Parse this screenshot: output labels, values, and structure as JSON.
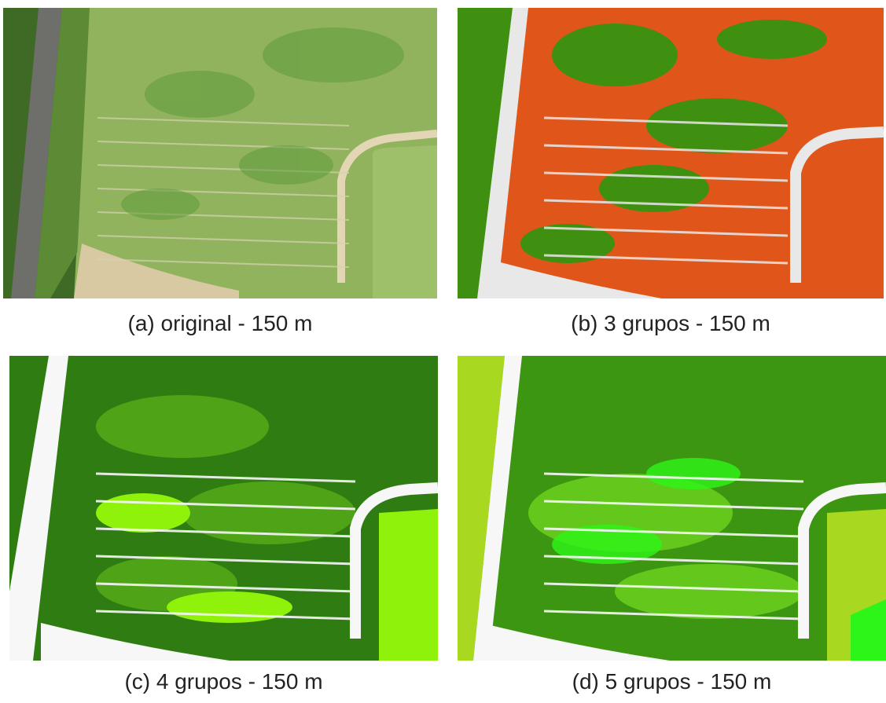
{
  "figures": [
    {
      "id": "a",
      "caption": "(a) original - 150 m",
      "kind": "aerial-photo",
      "colors": {
        "field": "#8fb05a",
        "dark": "#4f8a2e",
        "track": "#e2d6b5",
        "road": "#6e6e6a",
        "trees": "#3e6a25"
      }
    },
    {
      "id": "b",
      "caption": "(b) 3 grupos - 150 m",
      "kind": "segmentation",
      "colors": {
        "c1": "#e0561a",
        "c2": "#3f8f10",
        "c3": "#e8e8e8"
      }
    },
    {
      "id": "c",
      "caption": "(c) 4 grupos - 150 m",
      "kind": "segmentation",
      "colors": {
        "c1": "#2f7d12",
        "c2": "#4ea416",
        "c3": "#8ff20a",
        "c4": "#f7f7f7"
      }
    },
    {
      "id": "d",
      "caption": "(d) 5 grupos - 150 m",
      "kind": "segmentation",
      "colors": {
        "c1": "#3c9612",
        "c2": "#64c81c",
        "c3": "#a8d820",
        "c4": "#2df518",
        "c5": "#f7f7f7"
      }
    }
  ]
}
